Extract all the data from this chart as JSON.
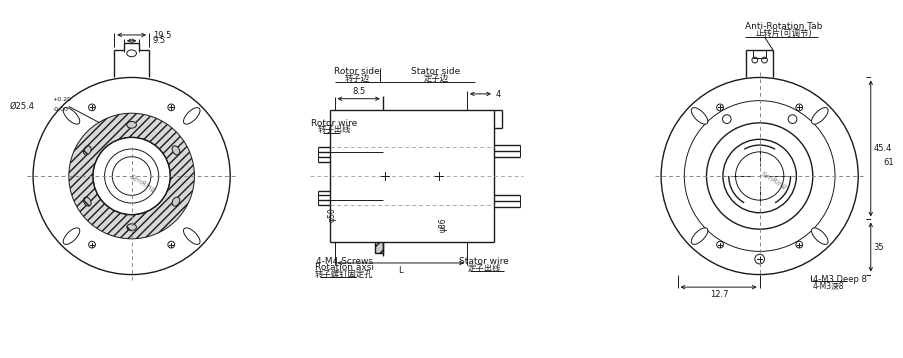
{
  "bg_color": "#ffffff",
  "line_color": "#1a1a1a",
  "dim_color": "#1a1a1a",
  "thin_lw": 0.7,
  "med_lw": 1.0,
  "thick_lw": 1.4,
  "dash_style": [
    4,
    3
  ],
  "labels": {
    "rotor_side": "Rotor side",
    "rotor_side_cn": "转子边",
    "stator_side": "Stator side",
    "stator_side_cn": "定子边",
    "anti_rot": "Anti-Rotation Tab",
    "anti_rot_cn": "止转片(可调节)",
    "rotor_wire": "Rotor wire",
    "rotor_wire_cn": "转子出线",
    "stator_wire": "Stator wire",
    "stator_wire_cn": "定子出线",
    "screws": "4-M4 Screws",
    "rotation": "Rotation axsi",
    "rotation_cn": "转子螺钉固定孔",
    "m3deep": "4-M3 Deep 8",
    "m3deep_cn": "4-M3深8",
    "dim_195": "19.5",
    "dim_95": "9.5",
    "dim_dia254": "Ø25.4",
    "dim_tol": "+0.20\n-0.00",
    "dim_85": "8.5",
    "dim_4": "4",
    "dim_50": "φ50",
    "dim_86": "ψ86",
    "dim_L": "L",
    "dim_127": "12.7",
    "dim_454": "45.4",
    "dim_61": "61",
    "dim_35": "35"
  },
  "font_size_label": 6.5,
  "font_size_dim": 6.0,
  "font_size_cn": 6.0
}
